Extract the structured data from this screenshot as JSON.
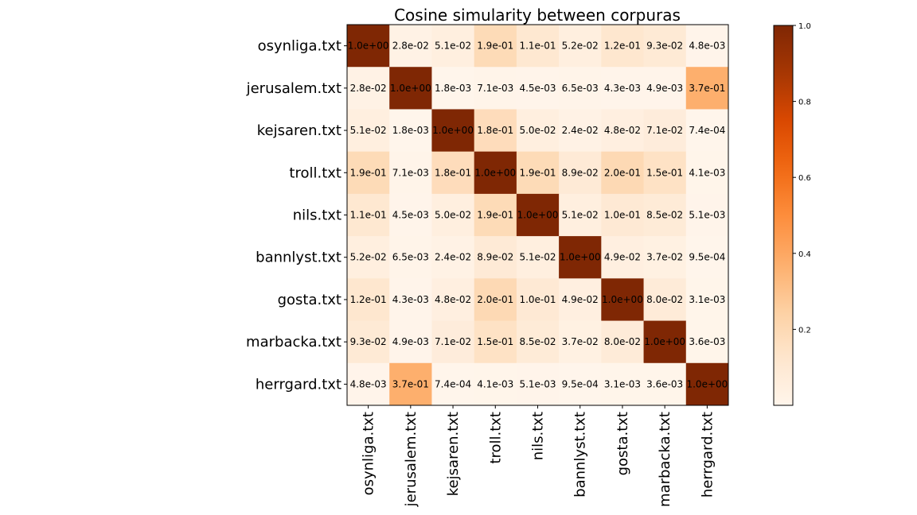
{
  "chart_data": {
    "type": "heatmap",
    "title": "Cosine simularity between corpuras",
    "labels": [
      "osynliga.txt",
      "jerusalem.txt",
      "kejsaren.txt",
      "troll.txt",
      "nils.txt",
      "bannlyst.txt",
      "gosta.txt",
      "marbacka.txt",
      "herrgard.txt"
    ],
    "values": [
      [
        1.0,
        0.028,
        0.051,
        0.19,
        0.11,
        0.052,
        0.12,
        0.093,
        0.0048
      ],
      [
        0.028,
        1.0,
        0.0018,
        0.0071,
        0.0045,
        0.0065,
        0.0043,
        0.0049,
        0.37
      ],
      [
        0.051,
        0.0018,
        1.0,
        0.18,
        0.05,
        0.024,
        0.048,
        0.071,
        0.00074
      ],
      [
        0.19,
        0.0071,
        0.18,
        1.0,
        0.19,
        0.089,
        0.2,
        0.15,
        0.0041
      ],
      [
        0.11,
        0.0045,
        0.05,
        0.19,
        1.0,
        0.051,
        0.1,
        0.085,
        0.0051
      ],
      [
        0.052,
        0.0065,
        0.024,
        0.089,
        0.051,
        1.0,
        0.049,
        0.037,
        0.00095
      ],
      [
        0.12,
        0.0043,
        0.048,
        0.2,
        0.1,
        0.049,
        1.0,
        0.08,
        0.0031
      ],
      [
        0.093,
        0.0049,
        0.071,
        0.15,
        0.085,
        0.037,
        0.08,
        1.0,
        0.0036
      ],
      [
        0.0048,
        0.37,
        0.00074,
        0.0041,
        0.0051,
        0.00095,
        0.0031,
        0.0036,
        1.0
      ]
    ],
    "cell_labels": [
      [
        "1.0e+00",
        "2.8e-02",
        "5.1e-02",
        "1.9e-01",
        "1.1e-01",
        "5.2e-02",
        "1.2e-01",
        "9.3e-02",
        "4.8e-03"
      ],
      [
        "2.8e-02",
        "1.0e+00",
        "1.8e-03",
        "7.1e-03",
        "4.5e-03",
        "6.5e-03",
        "4.3e-03",
        "4.9e-03",
        "3.7e-01"
      ],
      [
        "5.1e-02",
        "1.8e-03",
        "1.0e+00",
        "1.8e-01",
        "5.0e-02",
        "2.4e-02",
        "4.8e-02",
        "7.1e-02",
        "7.4e-04"
      ],
      [
        "1.9e-01",
        "7.1e-03",
        "1.8e-01",
        "1.0e+00",
        "1.9e-01",
        "8.9e-02",
        "2.0e-01",
        "1.5e-01",
        "4.1e-03"
      ],
      [
        "1.1e-01",
        "4.5e-03",
        "5.0e-02",
        "1.9e-01",
        "1.0e+00",
        "5.1e-02",
        "1.0e-01",
        "8.5e-02",
        "5.1e-03"
      ],
      [
        "5.2e-02",
        "6.5e-03",
        "2.4e-02",
        "8.9e-02",
        "5.1e-02",
        "1.0e+00",
        "4.9e-02",
        "3.7e-02",
        "9.5e-04"
      ],
      [
        "1.2e-01",
        "4.3e-03",
        "4.8e-02",
        "2.0e-01",
        "1.0e-01",
        "4.9e-02",
        "1.0e+00",
        "8.0e-02",
        "3.1e-03"
      ],
      [
        "9.3e-02",
        "4.9e-03",
        "7.1e-02",
        "1.5e-01",
        "8.5e-02",
        "3.7e-02",
        "8.0e-02",
        "1.0e+00",
        "3.6e-03"
      ],
      [
        "4.8e-03",
        "3.7e-01",
        "7.4e-04",
        "4.1e-03",
        "5.1e-03",
        "9.5e-04",
        "3.1e-03",
        "3.6e-03",
        "1.0e+00"
      ]
    ],
    "colormap": "Oranges",
    "colorbar": {
      "range": [
        0.0,
        1.0
      ],
      "ticks": [
        "0.2",
        "0.4",
        "0.6",
        "0.8",
        "1.0"
      ],
      "tick_values": [
        0.2,
        0.4,
        0.6,
        0.8,
        1.0
      ]
    },
    "colors": {
      "low": "#fff5eb",
      "high": "#7f2704"
    },
    "grid": false
  }
}
